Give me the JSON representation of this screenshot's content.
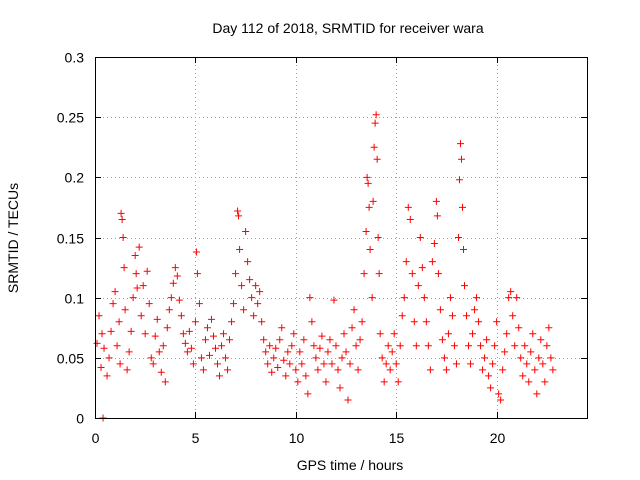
{
  "chart_data": {
    "type": "scatter",
    "title": "Day 112 of 2018, SRMTID for receiver wara",
    "xlabel": "GPS time / hours",
    "ylabel": "SRMTID / TECUs",
    "xlim": [
      0,
      24.5
    ],
    "ylim": [
      0,
      0.3
    ],
    "xticks": [
      0,
      5,
      10,
      15,
      20
    ],
    "xtick_labels": [
      "0",
      "5",
      "10",
      "15",
      "20"
    ],
    "yticks": [
      0,
      0.05,
      0.1,
      0.15,
      0.2,
      0.25,
      0.3
    ],
    "ytick_labels": [
      "0",
      "0.05",
      "0.1",
      "0.15",
      "0.2",
      "0.25",
      "0.3"
    ],
    "grid": true,
    "marker": "+",
    "color": "#ff0000",
    "series": [
      {
        "name": "SRMTID",
        "points": [
          [
            0.1,
            0.062
          ],
          [
            0.2,
            0.085
          ],
          [
            0.3,
            0.042
          ],
          [
            0.35,
            0.07
          ],
          [
            0.4,
            0.0
          ],
          [
            0.45,
            0.058
          ],
          [
            0.6,
            0.035
          ],
          [
            0.7,
            0.05
          ],
          [
            0.8,
            0.072
          ],
          [
            0.9,
            0.095
          ],
          [
            1.0,
            0.105
          ],
          [
            1.1,
            0.06
          ],
          [
            1.2,
            0.08
          ],
          [
            1.25,
            0.045
          ],
          [
            1.3,
            0.17
          ],
          [
            1.35,
            0.165
          ],
          [
            1.4,
            0.15
          ],
          [
            1.45,
            0.125
          ],
          [
            1.5,
            0.09
          ],
          [
            1.6,
            0.04
          ],
          [
            1.7,
            0.055
          ],
          [
            1.8,
            0.072
          ],
          [
            1.9,
            0.1
          ],
          [
            2.0,
            0.135
          ],
          [
            2.05,
            0.12
          ],
          [
            2.1,
            0.108
          ],
          [
            2.2,
            0.142
          ],
          [
            2.3,
            0.085
          ],
          [
            2.4,
            0.11
          ],
          [
            2.5,
            0.07
          ],
          [
            2.6,
            0.122
          ],
          [
            2.7,
            0.095
          ],
          [
            2.8,
            0.05
          ],
          [
            2.9,
            0.045
          ],
          [
            3.0,
            0.068
          ],
          [
            3.1,
            0.082
          ],
          [
            3.2,
            0.055
          ],
          [
            3.3,
            0.038
          ],
          [
            3.4,
            0.06
          ],
          [
            3.5,
            0.03
          ],
          [
            3.6,
            0.075
          ],
          [
            3.7,
            0.09
          ],
          [
            3.8,
            0.1
          ],
          [
            3.9,
            0.112
          ],
          [
            4.0,
            0.125
          ],
          [
            4.1,
            0.118
          ],
          [
            4.2,
            0.098
          ],
          [
            4.3,
            0.085
          ],
          [
            4.4,
            0.07
          ],
          [
            4.5,
            0.062
          ],
          [
            4.6,
            0.055
          ],
          [
            4.7,
            0.072
          ],
          [
            4.8,
            0.058
          ],
          [
            4.9,
            0.045
          ],
          [
            5.0,
            0.08
          ],
          [
            5.05,
            0.138
          ],
          [
            5.1,
            0.12
          ],
          [
            5.2,
            0.095
          ],
          [
            5.3,
            0.05
          ],
          [
            5.4,
            0.04
          ],
          [
            5.5,
            0.065
          ],
          [
            5.6,
            0.075
          ],
          [
            5.7,
            0.052
          ],
          [
            5.8,
            0.082
          ],
          [
            5.9,
            0.068
          ],
          [
            6.0,
            0.058
          ],
          [
            6.1,
            0.045
          ],
          [
            6.2,
            0.035
          ],
          [
            6.3,
            0.06
          ],
          [
            6.4,
            0.07
          ],
          [
            6.5,
            0.05
          ],
          [
            6.6,
            0.04
          ],
          [
            6.7,
            0.065
          ],
          [
            6.8,
            0.08
          ],
          [
            6.9,
            0.095
          ],
          [
            7.0,
            0.12
          ],
          [
            7.1,
            0.172
          ],
          [
            7.15,
            0.168
          ],
          [
            7.2,
            0.14
          ],
          [
            7.3,
            0.11
          ],
          [
            7.4,
            0.09
          ],
          [
            7.5,
            0.155
          ],
          [
            7.6,
            0.13
          ],
          [
            7.7,
            0.115
          ],
          [
            7.8,
            0.1
          ],
          [
            7.9,
            0.085
          ],
          [
            8.0,
            0.11
          ],
          [
            8.1,
            0.095
          ],
          [
            8.2,
            0.105
          ],
          [
            8.3,
            0.08
          ],
          [
            8.4,
            0.065
          ],
          [
            8.5,
            0.055
          ],
          [
            8.6,
            0.045
          ],
          [
            8.7,
            0.06
          ],
          [
            8.8,
            0.038
          ],
          [
            8.9,
            0.05
          ],
          [
            9.0,
            0.058
          ],
          [
            9.1,
            0.042
          ],
          [
            9.2,
            0.065
          ],
          [
            9.3,
            0.075
          ],
          [
            9.4,
            0.048
          ],
          [
            9.5,
            0.035
          ],
          [
            9.6,
            0.055
          ],
          [
            9.7,
            0.045
          ],
          [
            9.8,
            0.06
          ],
          [
            9.9,
            0.07
          ],
          [
            10.0,
            0.04
          ],
          [
            10.1,
            0.03
          ],
          [
            10.2,
            0.055
          ],
          [
            10.3,
            0.045
          ],
          [
            10.4,
            0.065
          ],
          [
            10.5,
            0.035
          ],
          [
            10.6,
            0.02
          ],
          [
            10.7,
            0.1
          ],
          [
            10.8,
            0.08
          ],
          [
            10.9,
            0.06
          ],
          [
            11.0,
            0.05
          ],
          [
            11.1,
            0.04
          ],
          [
            11.2,
            0.058
          ],
          [
            11.3,
            0.068
          ],
          [
            11.4,
            0.045
          ],
          [
            11.5,
            0.03
          ],
          [
            11.6,
            0.055
          ],
          [
            11.7,
            0.065
          ],
          [
            11.8,
            0.045
          ],
          [
            11.9,
            0.098
          ],
          [
            12.0,
            0.06
          ],
          [
            12.1,
            0.04
          ],
          [
            12.2,
            0.025
          ],
          [
            12.3,
            0.05
          ],
          [
            12.4,
            0.07
          ],
          [
            12.5,
            0.055
          ],
          [
            12.6,
            0.015
          ],
          [
            12.7,
            0.045
          ],
          [
            12.8,
            0.075
          ],
          [
            12.9,
            0.09
          ],
          [
            13.0,
            0.06
          ],
          [
            13.1,
            0.04
          ],
          [
            13.2,
            0.065
          ],
          [
            13.3,
            0.08
          ],
          [
            13.4,
            0.12
          ],
          [
            13.5,
            0.155
          ],
          [
            13.55,
            0.2
          ],
          [
            13.6,
            0.195
          ],
          [
            13.65,
            0.175
          ],
          [
            13.7,
            0.14
          ],
          [
            13.8,
            0.1
          ],
          [
            13.85,
            0.18
          ],
          [
            13.9,
            0.225
          ],
          [
            13.95,
            0.245
          ],
          [
            14.0,
            0.252
          ],
          [
            14.05,
            0.215
          ],
          [
            14.1,
            0.15
          ],
          [
            14.15,
            0.12
          ],
          [
            14.2,
            0.07
          ],
          [
            14.3,
            0.05
          ],
          [
            14.4,
            0.03
          ],
          [
            14.5,
            0.045
          ],
          [
            14.6,
            0.06
          ],
          [
            14.7,
            0.04
          ],
          [
            14.8,
            0.055
          ],
          [
            14.9,
            0.07
          ],
          [
            15.0,
            0.045
          ],
          [
            15.1,
            0.03
          ],
          [
            15.2,
            0.06
          ],
          [
            15.3,
            0.085
          ],
          [
            15.4,
            0.1
          ],
          [
            15.5,
            0.13
          ],
          [
            15.6,
            0.175
          ],
          [
            15.7,
            0.165
          ],
          [
            15.8,
            0.12
          ],
          [
            15.9,
            0.08
          ],
          [
            16.0,
            0.06
          ],
          [
            16.1,
            0.11
          ],
          [
            16.2,
            0.15
          ],
          [
            16.3,
            0.125
          ],
          [
            16.4,
            0.1
          ],
          [
            16.5,
            0.08
          ],
          [
            16.6,
            0.06
          ],
          [
            16.7,
            0.04
          ],
          [
            16.8,
            0.13
          ],
          [
            16.9,
            0.145
          ],
          [
            17.0,
            0.18
          ],
          [
            17.05,
            0.168
          ],
          [
            17.1,
            0.12
          ],
          [
            17.2,
            0.09
          ],
          [
            17.3,
            0.065
          ],
          [
            17.4,
            0.05
          ],
          [
            17.5,
            0.04
          ],
          [
            17.6,
            0.07
          ],
          [
            17.7,
            0.1
          ],
          [
            17.8,
            0.085
          ],
          [
            17.9,
            0.06
          ],
          [
            18.0,
            0.045
          ],
          [
            18.1,
            0.15
          ],
          [
            18.15,
            0.198
          ],
          [
            18.2,
            0.228
          ],
          [
            18.25,
            0.215
          ],
          [
            18.3,
            0.175
          ],
          [
            18.35,
            0.14
          ],
          [
            18.4,
            0.11
          ],
          [
            18.5,
            0.085
          ],
          [
            18.6,
            0.06
          ],
          [
            18.7,
            0.045
          ],
          [
            18.8,
            0.07
          ],
          [
            18.9,
            0.09
          ],
          [
            19.0,
            0.1
          ],
          [
            19.1,
            0.08
          ],
          [
            19.2,
            0.06
          ],
          [
            19.3,
            0.04
          ],
          [
            19.4,
            0.05
          ],
          [
            19.5,
            0.065
          ],
          [
            19.6,
            0.035
          ],
          [
            19.7,
            0.025
          ],
          [
            19.8,
            0.045
          ],
          [
            19.9,
            0.06
          ],
          [
            20.0,
            0.08
          ],
          [
            20.1,
            0.02
          ],
          [
            20.2,
            0.015
          ],
          [
            20.3,
            0.04
          ],
          [
            20.4,
            0.055
          ],
          [
            20.5,
            0.07
          ],
          [
            20.6,
            0.1
          ],
          [
            20.7,
            0.105
          ],
          [
            20.8,
            0.085
          ],
          [
            20.9,
            0.06
          ],
          [
            21.0,
            0.1
          ],
          [
            21.1,
            0.075
          ],
          [
            21.2,
            0.05
          ],
          [
            21.3,
            0.035
          ],
          [
            21.4,
            0.06
          ],
          [
            21.5,
            0.045
          ],
          [
            21.6,
            0.03
          ],
          [
            21.7,
            0.055
          ],
          [
            21.8,
            0.07
          ],
          [
            21.9,
            0.04
          ],
          [
            22.0,
            0.02
          ],
          [
            22.1,
            0.05
          ],
          [
            22.2,
            0.065
          ],
          [
            22.3,
            0.045
          ],
          [
            22.4,
            0.03
          ],
          [
            22.5,
            0.06
          ],
          [
            22.6,
            0.075
          ],
          [
            22.7,
            0.05
          ],
          [
            22.8,
            0.04
          ]
        ]
      }
    ]
  }
}
